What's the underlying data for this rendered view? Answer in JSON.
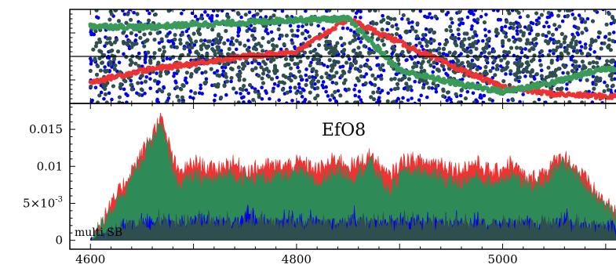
{
  "chart_data": [
    {
      "type": "scatter",
      "panel": "phase",
      "xlim": [
        4580,
        5110
      ],
      "ylim": [
        -1,
        1
      ],
      "yticks_labeled": false,
      "series": [
        {
          "color": "#0000ee",
          "pattern": "uniform random scatter over full range",
          "x": [
            4600,
            4700,
            4800,
            4900,
            5000,
            5100
          ],
          "y": [
            0,
            0,
            0,
            0,
            0,
            0
          ]
        },
        {
          "color": "#2f4f4f",
          "pattern": "random scatter, denser near zero",
          "x": [
            4600,
            4700,
            4800,
            4900,
            5000,
            5100
          ],
          "y": [
            0,
            0,
            0,
            0,
            0,
            0
          ]
        },
        {
          "color": "#3a9a5a",
          "pattern": "continuous phase track",
          "x": [
            4600,
            4650,
            4700,
            4750,
            4800,
            4850,
            4900,
            4950,
            5000,
            5050,
            5100
          ],
          "y": [
            0.65,
            0.62,
            0.68,
            0.72,
            0.78,
            0.8,
            -0.3,
            -0.55,
            -0.75,
            -0.55,
            -0.25
          ]
        },
        {
          "color": "#ee3333",
          "pattern": "continuous phase track",
          "x": [
            4600,
            4650,
            4700,
            4750,
            4800,
            4850,
            4900,
            4950,
            5000,
            5050,
            5100
          ],
          "y": [
            -0.55,
            -0.3,
            -0.15,
            0.0,
            0.1,
            0.8,
            0.3,
            -0.2,
            -0.65,
            -0.8,
            -0.85
          ]
        }
      ]
    },
    {
      "type": "area",
      "panel": "amplitude",
      "title": "EfO8",
      "annotation": "multi SB",
      "xlim": [
        4580,
        5110
      ],
      "ylim": [
        -0.0012,
        0.0185
      ],
      "xticks": [
        {
          "value": 4600,
          "label": "4600"
        },
        {
          "value": 4800,
          "label": "4800"
        },
        {
          "value": 5000,
          "label": "5000"
        }
      ],
      "yticks": [
        {
          "value": 0,
          "label": "0",
          "sup": ""
        },
        {
          "value": 0.005,
          "label": "5×10",
          "sup": "-3"
        },
        {
          "value": 0.01,
          "label": "0.01",
          "sup": ""
        },
        {
          "value": 0.015,
          "label": "0.015",
          "sup": ""
        }
      ],
      "series": [
        {
          "color": "#ee3333",
          "x_start": 4600,
          "x_end": 5110,
          "values": [
            0.0,
            0.004,
            0.008,
            0.012,
            0.0165,
            0.009,
            0.0105,
            0.0095,
            0.0105,
            0.0095,
            0.01,
            0.01,
            0.0105,
            0.0095,
            0.011,
            0.01,
            0.0115,
            0.0085,
            0.011,
            0.0105,
            0.0105,
            0.0095,
            0.0105,
            0.009,
            0.0105,
            0.008,
            0.0095,
            0.0115,
            0.009,
            0.006,
            0.0035
          ]
        },
        {
          "color": "#2e8b57",
          "x_start": 4600,
          "x_end": 5110,
          "values": [
            0.0,
            0.0035,
            0.007,
            0.011,
            0.0155,
            0.0075,
            0.0085,
            0.008,
            0.009,
            0.008,
            0.0085,
            0.0085,
            0.009,
            0.0075,
            0.0095,
            0.0085,
            0.0105,
            0.0065,
            0.0095,
            0.009,
            0.0085,
            0.0075,
            0.0085,
            0.0075,
            0.009,
            0.007,
            0.008,
            0.0105,
            0.008,
            0.0055,
            0.003
          ]
        },
        {
          "color": "#0000ee",
          "x_start": 4600,
          "x_end": 5110,
          "values": [
            0.0,
            0.0008,
            0.0018,
            0.0022,
            0.0025,
            0.002,
            0.0028,
            0.0025,
            0.0022,
            0.0028,
            0.002,
            0.0025,
            0.0022,
            0.0025,
            0.002,
            0.0028,
            0.0022,
            0.002,
            0.0025,
            0.0022,
            0.002,
            0.0025,
            0.0022,
            0.002,
            0.0018,
            0.0022,
            0.002,
            0.0025,
            0.002,
            0.0018,
            0.0015
          ]
        },
        {
          "color": "#2f4f4f",
          "x_start": 4600,
          "x_end": 5110,
          "values": [
            0.0,
            0.001,
            0.002,
            0.0022,
            0.0024,
            0.0022,
            0.0025,
            0.0024,
            0.0022,
            0.0024,
            0.0022,
            0.0023,
            0.0022,
            0.0024,
            0.0022,
            0.0023,
            0.0022,
            0.0021,
            0.0023,
            0.0022,
            0.0021,
            0.0023,
            0.0022,
            0.0021,
            0.002,
            0.0021,
            0.002,
            0.0022,
            0.002,
            0.0018,
            0.0016
          ]
        }
      ]
    }
  ]
}
